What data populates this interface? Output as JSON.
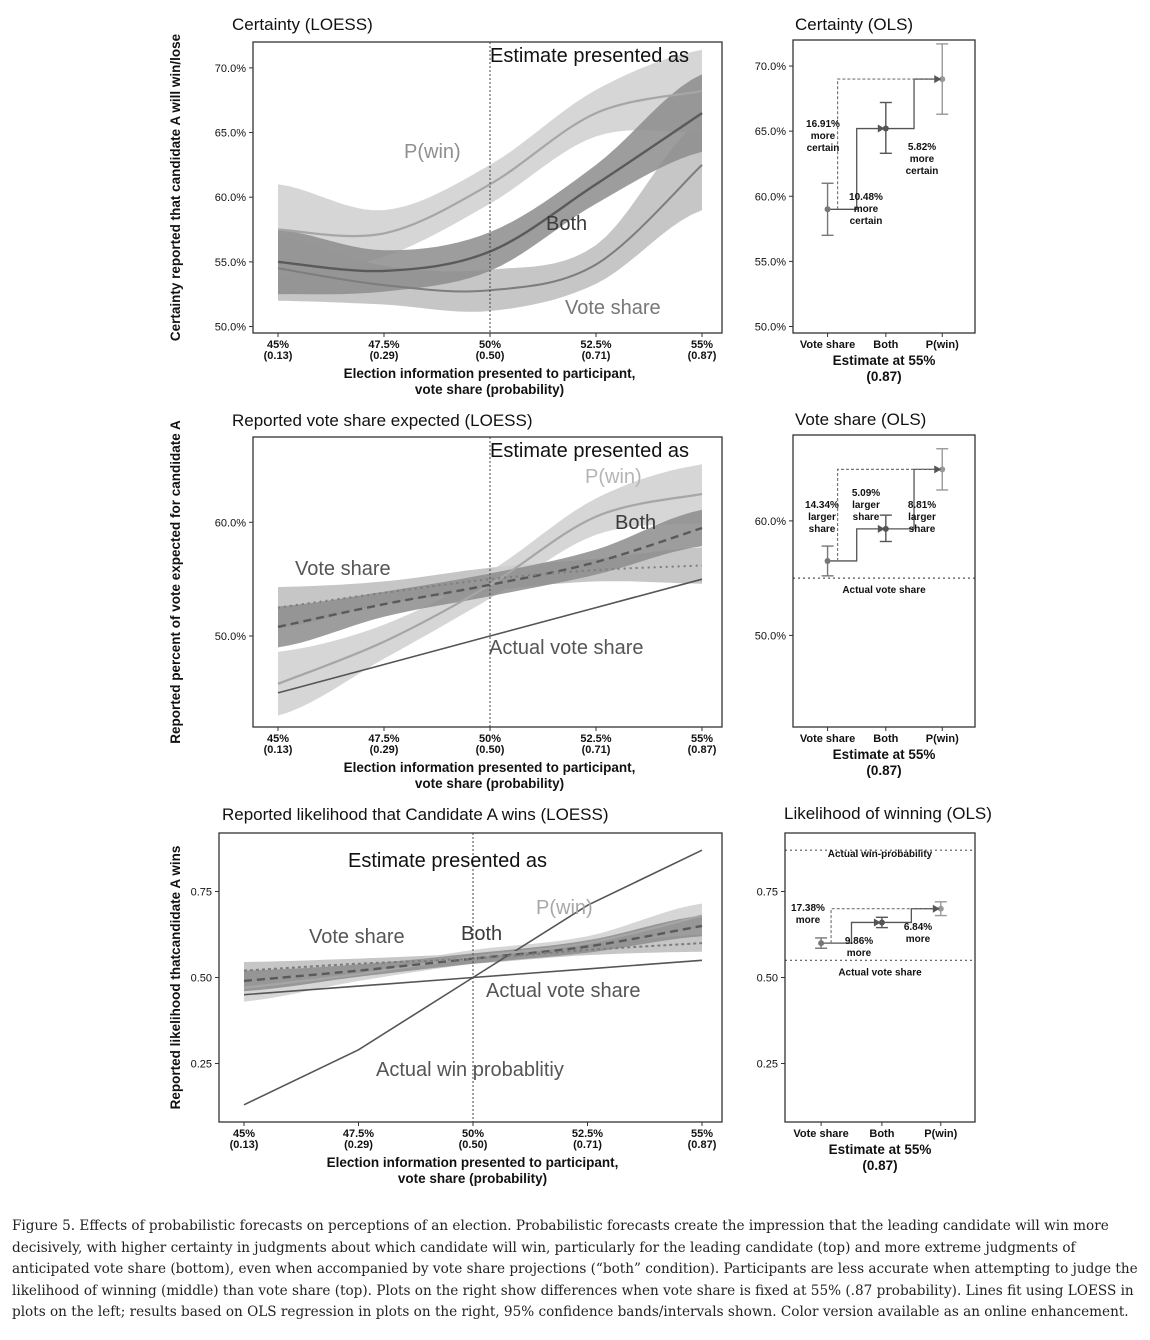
{
  "caption": "Figure 5. Effects of probabilistic forecasts on perceptions of an election. Probabilistic forecasts create the impression that the leading candidate will win more decisively, with higher certainty in judgments about which candidate will win, particularly for the leading candidate (top) and more extreme judgments of anticipated vote share (bottom), even when accompanied by vote share projections (“both” condition). Participants are less accurate when attempting to judge the likelihood of winning (middle) than vote share (top). Plots on the right show differences when vote share is fixed at 55% (.87 probability). Lines fit using LOESS in plots on the left; results based on OLS regression in plots on the right, 95% confidence bands/intervals shown. Color version available as an online enhancement.",
  "colors": {
    "pwin": "#a6a6a6",
    "both": "#5a5a5a",
    "vote": "#7d7d7d",
    "actual": "#555555",
    "frame": "#333333"
  },
  "shared": {
    "x_ticks": [
      "45%",
      "47.5%",
      "50%",
      "52.5%",
      "55%"
    ],
    "x_ticks_prob": [
      "(0.13)",
      "(0.29)",
      "(0.50)",
      "(0.71)",
      "(0.87)"
    ],
    "xlabel_line1": "Election information presented to participant,",
    "xlabel_line2": "vote share (probability)",
    "ols_categories": [
      "Vote share",
      "Both",
      "P(win)"
    ],
    "ols_xlabel_line1": "Estimate at 55%",
    "ols_xlabel_line2": "(0.87)",
    "legend_title": "Estimate presented as"
  },
  "chart_data": [
    {
      "type": "line",
      "title": "Certainty (LOESS)",
      "ylabel": "Certainty reported that candidate A will win/lose",
      "xlim": [
        45,
        55
      ],
      "ylim": [
        49.5,
        72
      ],
      "y_ticks": [
        "50.0%",
        "55.0%",
        "60.0%",
        "65.0%",
        "70.0%"
      ],
      "x": [
        45,
        47.5,
        50,
        52.5,
        55
      ],
      "labels": {
        "pwin": "P(win)",
        "both": "Both",
        "vote": "Vote share"
      },
      "series": [
        {
          "name": "P(win)",
          "values": [
            57.5,
            57.2,
            61.0,
            66.5,
            68.2
          ],
          "ci_half": [
            3.5,
            1.8,
            1.5,
            1.8,
            3.2
          ]
        },
        {
          "name": "Both",
          "values": [
            55.0,
            54.3,
            55.8,
            61.0,
            66.5
          ],
          "ci_half": [
            2.5,
            1.6,
            1.5,
            1.5,
            3.0
          ]
        },
        {
          "name": "Vote share",
          "values": [
            54.5,
            53.2,
            52.8,
            54.8,
            62.5
          ],
          "ci_half": [
            2.5,
            1.5,
            1.6,
            1.5,
            3.5
          ]
        }
      ]
    },
    {
      "type": "line",
      "title": "Reported vote share expected (LOESS)",
      "ylabel": "Reported percent of vote expected for candidate A",
      "xlim": [
        45,
        55
      ],
      "ylim": [
        42,
        67.5
      ],
      "y_ticks": [
        "50.0%",
        "60.0%"
      ],
      "x": [
        45,
        47.5,
        50,
        52.5,
        55
      ],
      "labels": {
        "pwin": "P(win)",
        "both": "Both",
        "vote": "Vote share",
        "actual": "Actual vote share"
      },
      "series": [
        {
          "name": "P(win)",
          "values": [
            45.8,
            49.5,
            54.5,
            60.5,
            62.5
          ],
          "ci_half": [
            2.8,
            1.5,
            1.2,
            1.6,
            2.6
          ]
        },
        {
          "name": "Both",
          "values": [
            50.8,
            52.8,
            54.5,
            56.5,
            59.5
          ],
          "ci_half": [
            1.8,
            1.1,
            1.0,
            1.1,
            1.6
          ]
        },
        {
          "name": "Vote share",
          "values": [
            52.5,
            53.8,
            55.0,
            55.8,
            56.2
          ],
          "ci_half": [
            1.8,
            1.0,
            1.0,
            1.0,
            1.6
          ]
        },
        {
          "name": "Actual vote share",
          "values": [
            45,
            47.5,
            50,
            52.5,
            55
          ]
        }
      ]
    },
    {
      "type": "line",
      "title": "Reported likelihood that Candidate A wins (LOESS)",
      "ylabel": "Reported likelihood thatcandidate A wins",
      "xlim": [
        45,
        55
      ],
      "ylim": [
        0.08,
        0.92
      ],
      "y_ticks": [
        "0.25",
        "0.50",
        "0.75"
      ],
      "x": [
        45,
        47.5,
        50,
        52.5,
        55
      ],
      "labels": {
        "pwin": "P(win)",
        "both": "Both",
        "vote": "Vote share",
        "actual_vote": "Actual vote share",
        "actual_win": "Actual win probablitiy"
      },
      "series": [
        {
          "name": "P(win)",
          "values": [
            0.47,
            0.51,
            0.56,
            0.6,
            0.68
          ],
          "ci_half": [
            0.04,
            0.02,
            0.02,
            0.02,
            0.035
          ]
        },
        {
          "name": "Both",
          "values": [
            0.49,
            0.52,
            0.555,
            0.59,
            0.65
          ],
          "ci_half": [
            0.03,
            0.018,
            0.015,
            0.018,
            0.03
          ]
        },
        {
          "name": "Vote share",
          "values": [
            0.52,
            0.54,
            0.555,
            0.58,
            0.6
          ],
          "ci_half": [
            0.025,
            0.015,
            0.015,
            0.015,
            0.025
          ]
        },
        {
          "name": "Actual vote share",
          "values": [
            0.45,
            0.475,
            0.5,
            0.525,
            0.55
          ]
        },
        {
          "name": "Actual win probablitiy",
          "values": [
            0.13,
            0.29,
            0.5,
            0.71,
            0.87
          ]
        }
      ]
    },
    {
      "type": "scatter",
      "title": "Certainty (OLS)",
      "ylim": [
        49.5,
        72
      ],
      "y_ticks": [
        "50.0%",
        "55.0%",
        "60.0%",
        "65.0%",
        "70.0%"
      ],
      "categories": [
        "Vote share",
        "Both",
        "P(win)"
      ],
      "values": [
        59.0,
        65.2,
        69.0
      ],
      "ci": [
        [
          57.0,
          61.0
        ],
        [
          63.3,
          67.2
        ],
        [
          66.3,
          71.7
        ]
      ],
      "annotations": [
        {
          "lines": [
            "16.91%",
            "more",
            "certain"
          ]
        },
        {
          "lines": [
            "10.48%",
            "more",
            "certain"
          ]
        },
        {
          "lines": [
            "5.82%",
            "more",
            "certain"
          ]
        }
      ]
    },
    {
      "type": "scatter",
      "title": "Vote share (OLS)",
      "ylim": [
        42,
        67.5
      ],
      "y_ticks": [
        "50.0%",
        "60.0%"
      ],
      "categories": [
        "Vote share",
        "Both",
        "P(win)"
      ],
      "values": [
        56.5,
        59.3,
        64.5
      ],
      "ci": [
        [
          55.2,
          57.8
        ],
        [
          58.2,
          60.5
        ],
        [
          62.7,
          66.3
        ]
      ],
      "reference": {
        "label": "Actual vote share",
        "value": 55
      },
      "annotations": [
        {
          "lines": [
            "14.34%",
            "larger",
            "share"
          ]
        },
        {
          "lines": [
            "5.09%",
            "larger",
            "share"
          ]
        },
        {
          "lines": [
            "8.81%",
            "larger",
            "share"
          ]
        }
      ]
    },
    {
      "type": "scatter",
      "title": "Likelihood of winning (OLS)",
      "ylim": [
        0.08,
        0.92
      ],
      "y_ticks": [
        "0.25",
        "0.50",
        "0.75"
      ],
      "categories": [
        "Vote share",
        "Both",
        "P(win)"
      ],
      "values": [
        0.6,
        0.66,
        0.7
      ],
      "ci": [
        [
          0.585,
          0.615
        ],
        [
          0.645,
          0.675
        ],
        [
          0.68,
          0.72
        ]
      ],
      "reference": [
        {
          "label": "Actual win-probability",
          "value": 0.87
        },
        {
          "label": "Actual vote share",
          "value": 0.55
        }
      ],
      "annotations": [
        {
          "lines": [
            "17.38%",
            "more"
          ]
        },
        {
          "lines": [
            "9.86%",
            "more"
          ]
        },
        {
          "lines": [
            "6.84%",
            "more"
          ]
        }
      ]
    }
  ]
}
